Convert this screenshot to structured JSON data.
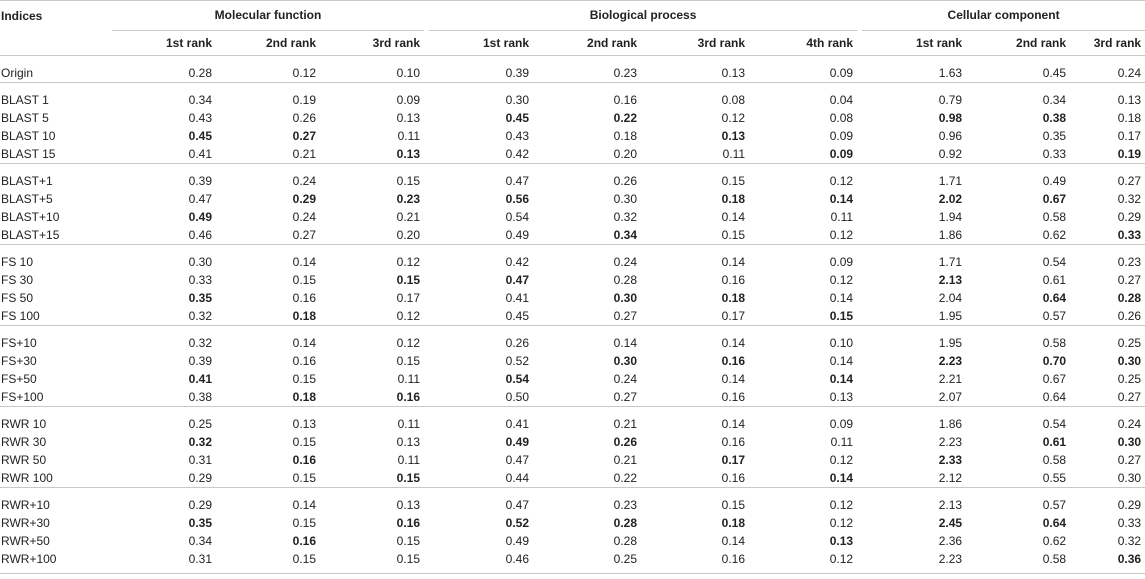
{
  "header": {
    "indices": "Indices",
    "groups": [
      "Molecular function",
      "Biological process",
      "Cellular component"
    ],
    "ranks": [
      "1st rank",
      "2nd rank",
      "3rd rank",
      "1st rank",
      "2nd rank",
      "3rd rank",
      "4th rank",
      "1st rank",
      "2nd rank",
      "3rd rank"
    ]
  },
  "row_groups": [
    [
      {
        "label": "Origin",
        "values": [
          "0.28",
          "0.12",
          "0.10",
          "0.39",
          "0.23",
          "0.13",
          "0.09",
          "1.63",
          "0.45",
          "0.24"
        ],
        "bold": []
      }
    ],
    [
      {
        "label": "BLAST 1",
        "values": [
          "0.34",
          "0.19",
          "0.09",
          "0.30",
          "0.16",
          "0.08",
          "0.04",
          "0.79",
          "0.34",
          "0.13"
        ],
        "bold": []
      },
      {
        "label": "BLAST 5",
        "values": [
          "0.43",
          "0.26",
          "0.13",
          "0.45",
          "0.22",
          "0.12",
          "0.08",
          "0.98",
          "0.38",
          "0.18"
        ],
        "bold": [
          3,
          4,
          7,
          8
        ]
      },
      {
        "label": "BLAST 10",
        "values": [
          "0.45",
          "0.27",
          "0.11",
          "0.43",
          "0.18",
          "0.13",
          "0.09",
          "0.96",
          "0.35",
          "0.17"
        ],
        "bold": [
          0,
          1,
          5
        ]
      },
      {
        "label": "BLAST 15",
        "values": [
          "0.41",
          "0.21",
          "0.13",
          "0.42",
          "0.20",
          "0.11",
          "0.09",
          "0.92",
          "0.33",
          "0.19"
        ],
        "bold": [
          2,
          6,
          9
        ]
      }
    ],
    [
      {
        "label": "BLAST+1",
        "values": [
          "0.39",
          "0.24",
          "0.15",
          "0.47",
          "0.26",
          "0.15",
          "0.12",
          "1.71",
          "0.49",
          "0.27"
        ],
        "bold": []
      },
      {
        "label": "BLAST+5",
        "values": [
          "0.47",
          "0.29",
          "0.23",
          "0.56",
          "0.30",
          "0.18",
          "0.14",
          "2.02",
          "0.67",
          "0.32"
        ],
        "bold": [
          1,
          2,
          3,
          5,
          6,
          7,
          8
        ]
      },
      {
        "label": "BLAST+10",
        "values": [
          "0.49",
          "0.24",
          "0.21",
          "0.54",
          "0.32",
          "0.14",
          "0.11",
          "1.94",
          "0.58",
          "0.29"
        ],
        "bold": [
          0
        ]
      },
      {
        "label": "BLAST+15",
        "values": [
          "0.46",
          "0.27",
          "0.20",
          "0.49",
          "0.34",
          "0.15",
          "0.12",
          "1.86",
          "0.62",
          "0.33"
        ],
        "bold": [
          4,
          9
        ]
      }
    ],
    [
      {
        "label": "FS 10",
        "values": [
          "0.30",
          "0.14",
          "0.12",
          "0.42",
          "0.24",
          "0.14",
          "0.09",
          "1.71",
          "0.54",
          "0.23"
        ],
        "bold": []
      },
      {
        "label": "FS 30",
        "values": [
          "0.33",
          "0.15",
          "0.15",
          "0.47",
          "0.28",
          "0.16",
          "0.12",
          "2.13",
          "0.61",
          "0.27"
        ],
        "bold": [
          2,
          3,
          7
        ]
      },
      {
        "label": "FS 50",
        "values": [
          "0.35",
          "0.16",
          "0.17",
          "0.41",
          "0.30",
          "0.18",
          "0.14",
          "2.04",
          "0.64",
          "0.28"
        ],
        "bold": [
          0,
          4,
          5,
          8,
          9
        ]
      },
      {
        "label": "FS 100",
        "values": [
          "0.32",
          "0.18",
          "0.12",
          "0.45",
          "0.27",
          "0.17",
          "0.15",
          "1.95",
          "0.57",
          "0.26"
        ],
        "bold": [
          1,
          6
        ]
      }
    ],
    [
      {
        "label": "FS+10",
        "values": [
          "0.32",
          "0.14",
          "0.12",
          "0.26",
          "0.14",
          "0.14",
          "0.10",
          "1.95",
          "0.58",
          "0.25"
        ],
        "bold": []
      },
      {
        "label": "FS+30",
        "values": [
          "0.39",
          "0.16",
          "0.15",
          "0.52",
          "0.30",
          "0.16",
          "0.14",
          "2.23",
          "0.70",
          "0.30"
        ],
        "bold": [
          4,
          5,
          7,
          8,
          9
        ]
      },
      {
        "label": "FS+50",
        "values": [
          "0.41",
          "0.15",
          "0.11",
          "0.54",
          "0.24",
          "0.14",
          "0.14",
          "2.21",
          "0.67",
          "0.25"
        ],
        "bold": [
          0,
          3,
          6
        ]
      },
      {
        "label": "FS+100",
        "values": [
          "0.38",
          "0.18",
          "0.16",
          "0.50",
          "0.27",
          "0.16",
          "0.13",
          "2.07",
          "0.64",
          "0.27"
        ],
        "bold": [
          1,
          2
        ]
      }
    ],
    [
      {
        "label": "RWR 10",
        "values": [
          "0.25",
          "0.13",
          "0.11",
          "0.41",
          "0.21",
          "0.14",
          "0.09",
          "1.86",
          "0.54",
          "0.24"
        ],
        "bold": []
      },
      {
        "label": "RWR 30",
        "values": [
          "0.32",
          "0.15",
          "0.13",
          "0.49",
          "0.26",
          "0.16",
          "0.11",
          "2.23",
          "0.61",
          "0.30"
        ],
        "bold": [
          0,
          3,
          4,
          8,
          9
        ]
      },
      {
        "label": "RWR 50",
        "values": [
          "0.31",
          "0.16",
          "0.11",
          "0.47",
          "0.21",
          "0.17",
          "0.12",
          "2.33",
          "0.58",
          "0.27"
        ],
        "bold": [
          1,
          5,
          7
        ]
      },
      {
        "label": "RWR 100",
        "values": [
          "0.29",
          "0.15",
          "0.15",
          "0.44",
          "0.22",
          "0.16",
          "0.14",
          "2.12",
          "0.55",
          "0.30"
        ],
        "bold": [
          2,
          6
        ]
      }
    ],
    [
      {
        "label": "RWR+10",
        "values": [
          "0.29",
          "0.14",
          "0.13",
          "0.47",
          "0.23",
          "0.15",
          "0.12",
          "2.13",
          "0.57",
          "0.29"
        ],
        "bold": []
      },
      {
        "label": "RWR+30",
        "values": [
          "0.35",
          "0.15",
          "0.16",
          "0.52",
          "0.28",
          "0.18",
          "0.12",
          "2.45",
          "0.64",
          "0.33"
        ],
        "bold": [
          0,
          2,
          3,
          4,
          5,
          7,
          8
        ]
      },
      {
        "label": "RWR+50",
        "values": [
          "0.34",
          "0.16",
          "0.15",
          "0.49",
          "0.28",
          "0.14",
          "0.13",
          "2.36",
          "0.62",
          "0.32"
        ],
        "bold": [
          1,
          6
        ]
      },
      {
        "label": "RWR+100",
        "values": [
          "0.31",
          "0.15",
          "0.15",
          "0.46",
          "0.25",
          "0.16",
          "0.12",
          "2.23",
          "0.58",
          "0.36"
        ],
        "bold": [
          9
        ]
      }
    ]
  ]
}
